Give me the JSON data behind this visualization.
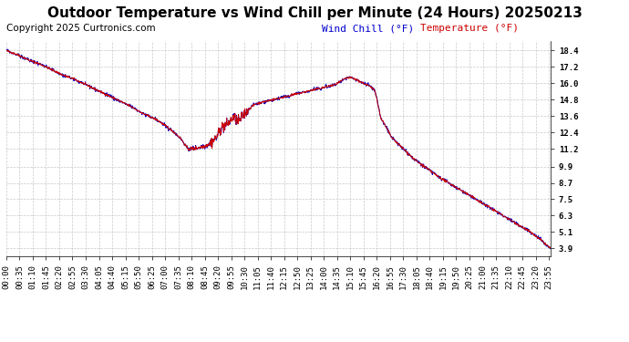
{
  "title": "Outdoor Temperature vs Wind Chill per Minute (24 Hours) 20250213",
  "copyright_text": "Copyright 2025 Curtronics.com",
  "legend_wind_chill": "Wind Chill (°F)",
  "legend_temperature": "Temperature (°F)",
  "wind_chill_color": "#0000cc",
  "temperature_color": "#cc0000",
  "background_color": "#ffffff",
  "plot_bg_color": "#ffffff",
  "grid_color": "#bbbbbb",
  "title_fontsize": 11,
  "copyright_fontsize": 7.5,
  "legend_fontsize": 8,
  "tick_label_fontsize": 6.5,
  "y_tick_labels": [
    18.4,
    17.2,
    16.0,
    14.8,
    13.6,
    12.4,
    11.2,
    9.9,
    8.7,
    7.5,
    6.3,
    5.1,
    3.9
  ],
  "y_min": 3.3,
  "y_max": 19.1,
  "x_tick_interval_minutes": 35,
  "total_minutes": 1440,
  "line_width": 0.7
}
